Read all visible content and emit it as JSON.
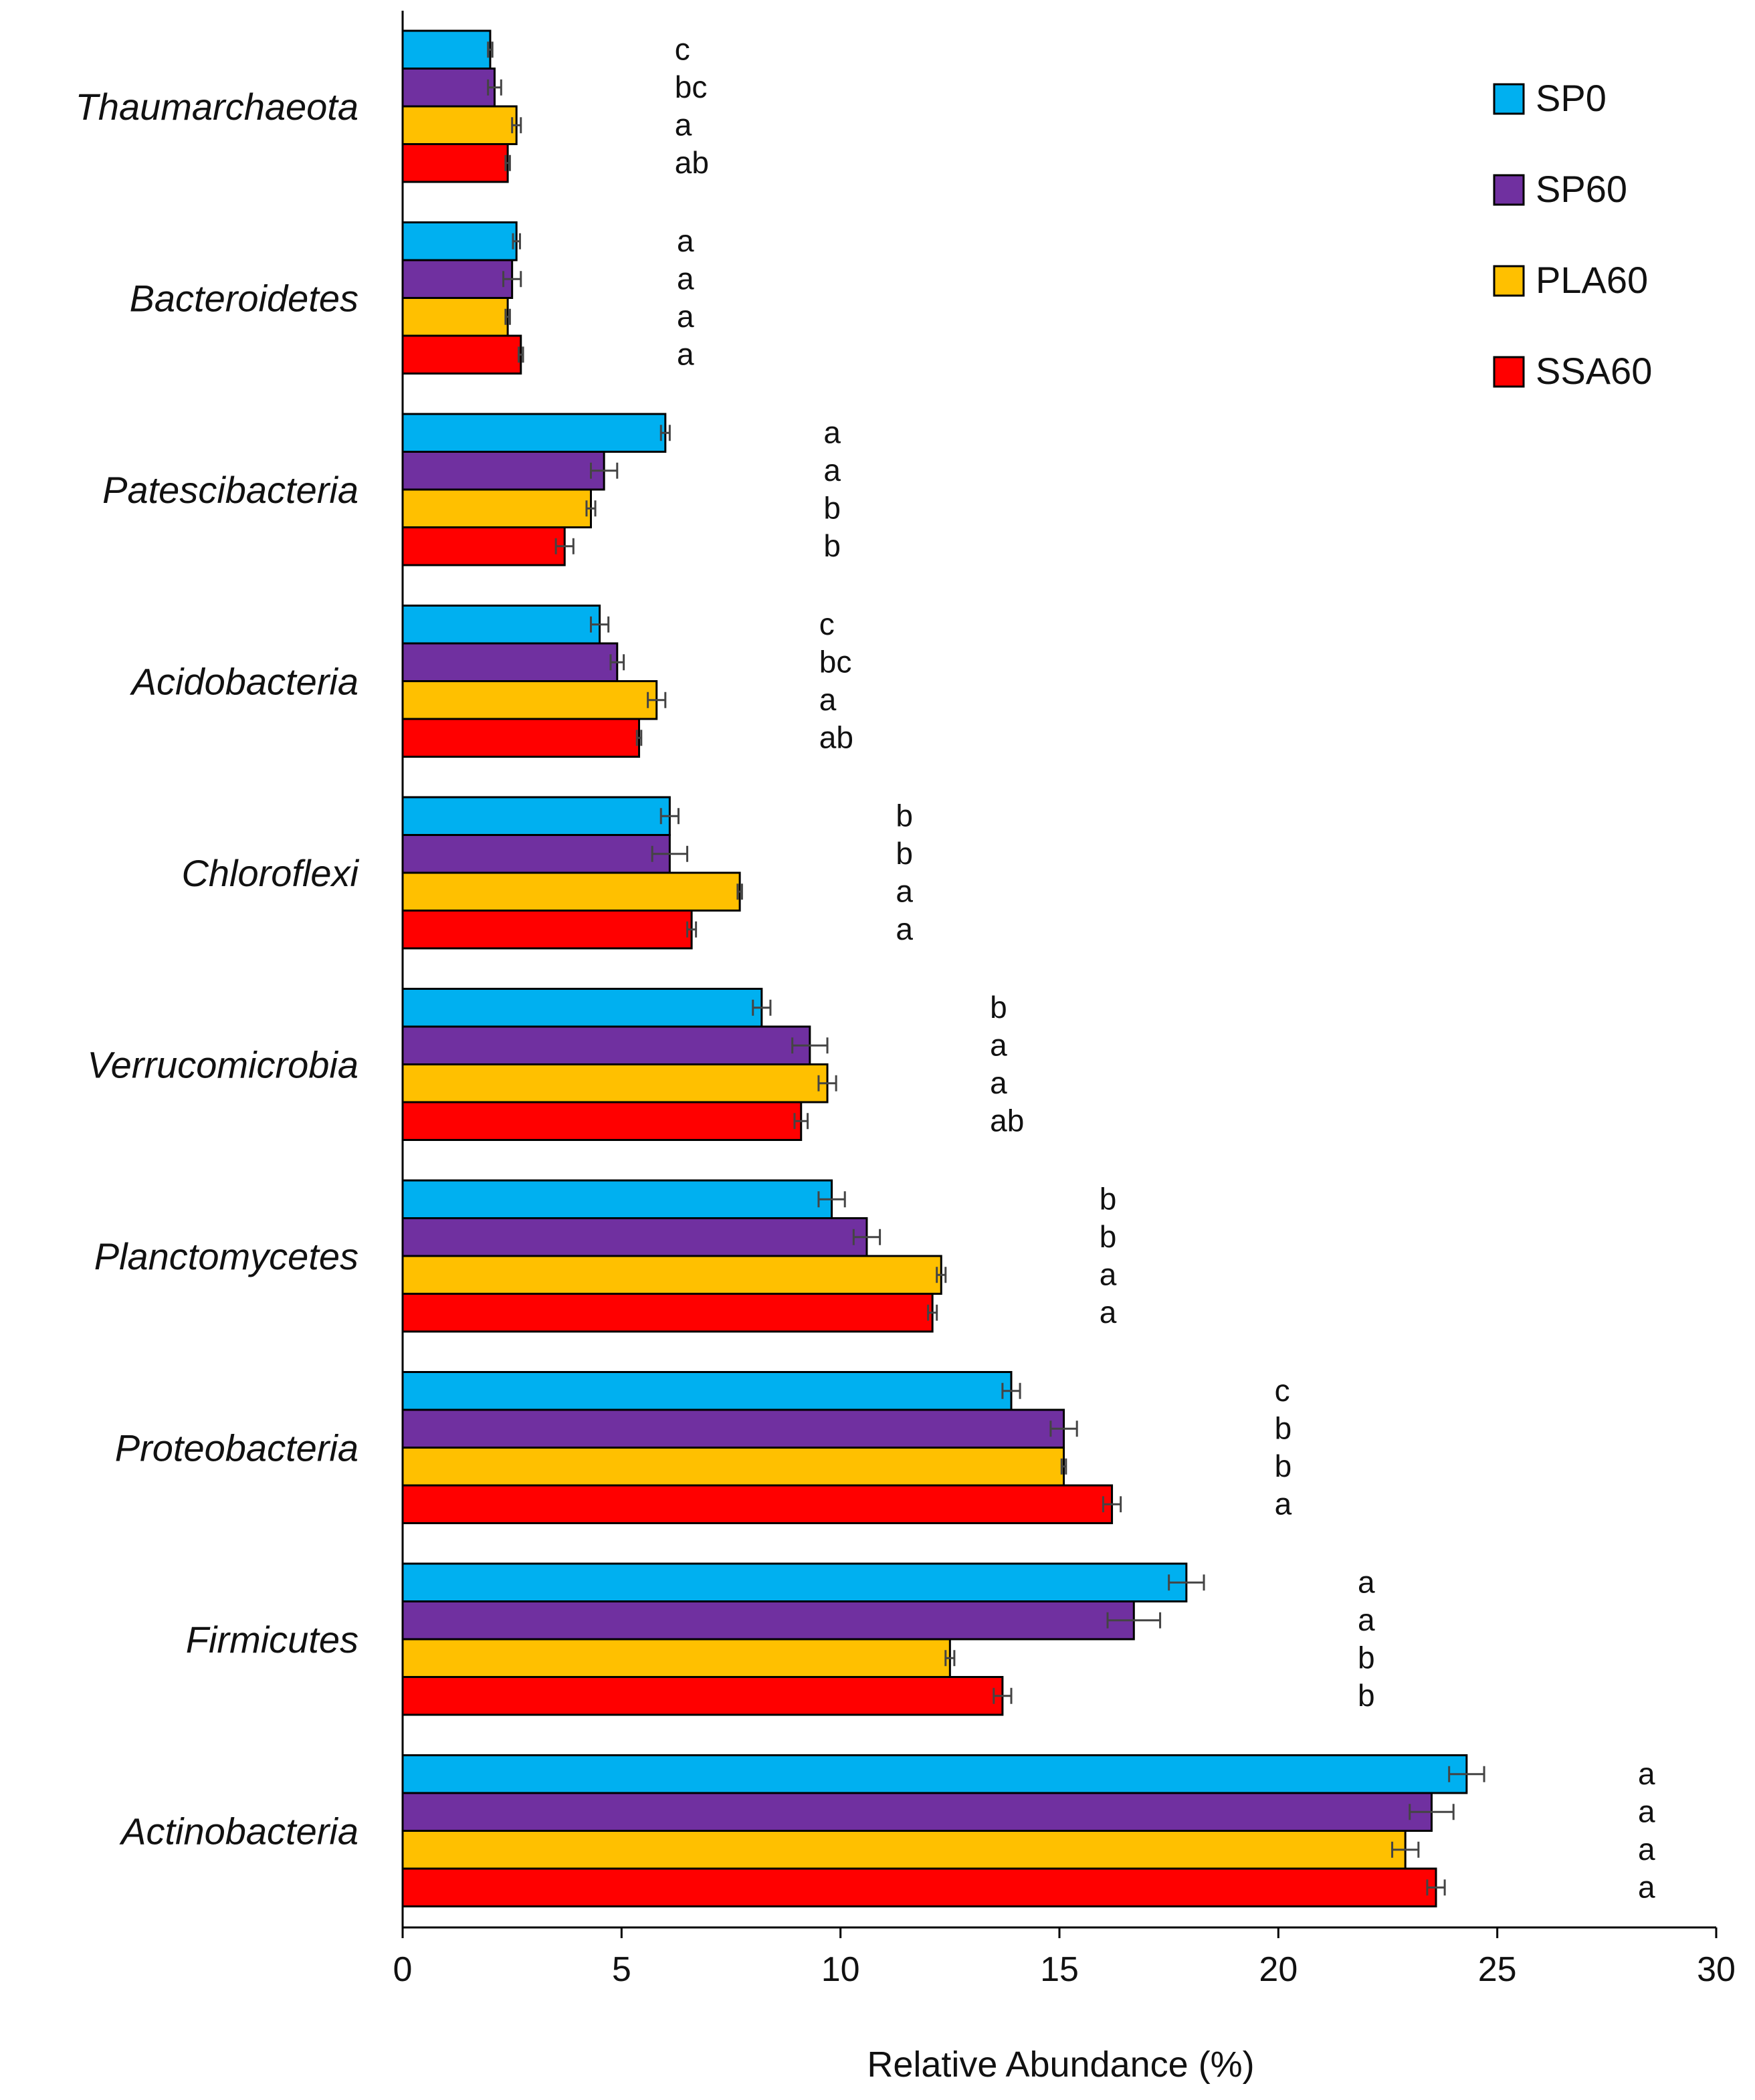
{
  "chart_data": {
    "type": "bar",
    "orientation": "horizontal",
    "title": "",
    "xlabel": "Relative Abundance (%)",
    "ylabel": "",
    "xlim": [
      0,
      30
    ],
    "xticks": [
      0,
      5,
      10,
      15,
      20,
      25,
      30
    ],
    "grid": false,
    "legend_position": "top-right",
    "categories": [
      "Thaumarchaeota",
      "Bacteroidetes",
      "Patescibacteria",
      "Acidobacteria",
      "Chloroflexi",
      "Verrucomicrobia",
      "Planctomycetes",
      "Proteobacteria",
      "Firmicutes",
      "Actinobacteria"
    ],
    "series": [
      {
        "name": "SP0",
        "color": "#00b0f0",
        "values": [
          2.0,
          2.6,
          6.0,
          4.5,
          6.1,
          8.2,
          9.8,
          13.9,
          17.9,
          24.3
        ],
        "errors": [
          0.05,
          0.08,
          0.1,
          0.2,
          0.2,
          0.2,
          0.3,
          0.2,
          0.4,
          0.4
        ],
        "significance": [
          "c",
          "a",
          "a",
          "c",
          "b",
          "b",
          "b",
          "c",
          "a",
          "a"
        ]
      },
      {
        "name": "SP60",
        "color": "#7030a0",
        "values": [
          2.1,
          2.5,
          4.6,
          4.9,
          6.1,
          9.3,
          10.6,
          15.1,
          16.7,
          23.5
        ],
        "errors": [
          0.15,
          0.2,
          0.3,
          0.15,
          0.4,
          0.4,
          0.3,
          0.3,
          0.6,
          0.5
        ],
        "significance": [
          "bc",
          "a",
          "a",
          "bc",
          "b",
          "a",
          "b",
          "b",
          "a",
          "a"
        ]
      },
      {
        "name": "PLA60",
        "color": "#ffc000",
        "values": [
          2.6,
          2.4,
          4.3,
          5.8,
          7.7,
          9.7,
          12.3,
          15.1,
          12.5,
          22.9
        ],
        "errors": [
          0.1,
          0.05,
          0.1,
          0.2,
          0.05,
          0.2,
          0.1,
          0.05,
          0.1,
          0.3
        ],
        "significance": [
          "a",
          "a",
          "b",
          "a",
          "a",
          "a",
          "a",
          "b",
          "b",
          "a"
        ]
      },
      {
        "name": "SSA60",
        "color": "#ff0000",
        "values": [
          2.4,
          2.7,
          3.7,
          5.4,
          6.6,
          9.1,
          12.1,
          16.2,
          13.7,
          23.6
        ],
        "errors": [
          0.05,
          0.05,
          0.2,
          0.05,
          0.1,
          0.15,
          0.1,
          0.2,
          0.2,
          0.2
        ],
        "significance": [
          "ab",
          "a",
          "b",
          "ab",
          "a",
          "ab",
          "a",
          "a",
          "b",
          "a"
        ]
      }
    ]
  }
}
